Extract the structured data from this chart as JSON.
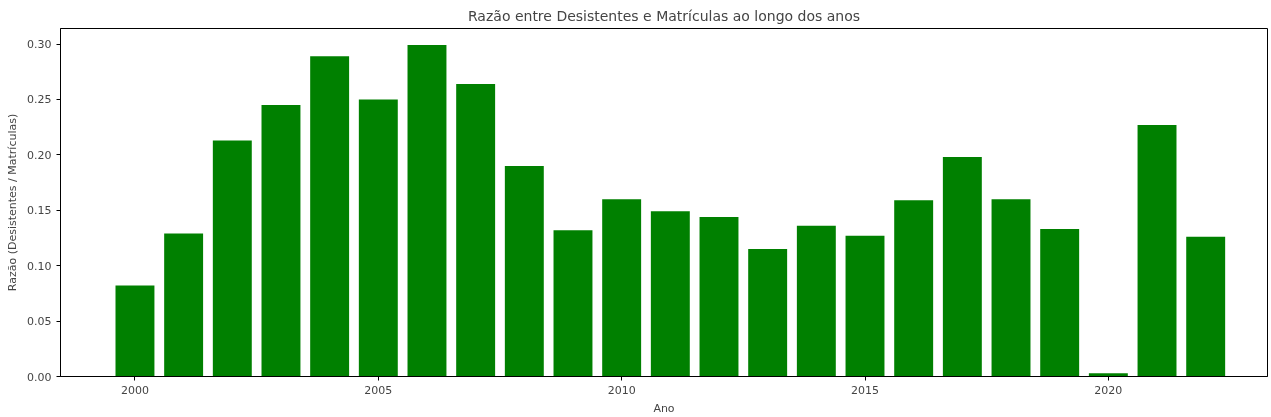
{
  "chart_data": {
    "type": "bar",
    "title": "Razão entre Desistentes e Matrículas ao longo dos anos",
    "xlabel": "Ano",
    "ylabel": "Razão (Desistentes / Matrículas)",
    "x": [
      2000,
      2001,
      2002,
      2003,
      2004,
      2005,
      2006,
      2007,
      2008,
      2009,
      2010,
      2011,
      2012,
      2013,
      2014,
      2015,
      2016,
      2017,
      2018,
      2019,
      2020,
      2021,
      2022
    ],
    "values": [
      0.082,
      0.129,
      0.213,
      0.245,
      0.289,
      0.25,
      0.299,
      0.264,
      0.19,
      0.132,
      0.16,
      0.149,
      0.144,
      0.115,
      0.136,
      0.127,
      0.159,
      0.198,
      0.16,
      0.133,
      0.003,
      0.227,
      0.126
    ],
    "color": "#008000",
    "xlim": [
      1998.47,
      2023.27
    ],
    "xticks": [
      2000,
      2005,
      2010,
      2015,
      2020
    ],
    "ylim": [
      0,
      0.314
    ],
    "yticks": [
      {
        "value": 0,
        "label": "0.00"
      },
      {
        "value": 0.05,
        "label": "0.05"
      },
      {
        "value": 0.1,
        "label": "0.10"
      },
      {
        "value": 0.15,
        "label": "0.15"
      },
      {
        "value": 0.2,
        "label": "0.20"
      },
      {
        "value": 0.25,
        "label": "0.25"
      },
      {
        "value": 0.3,
        "label": "0.30"
      }
    ],
    "grid": false
  }
}
